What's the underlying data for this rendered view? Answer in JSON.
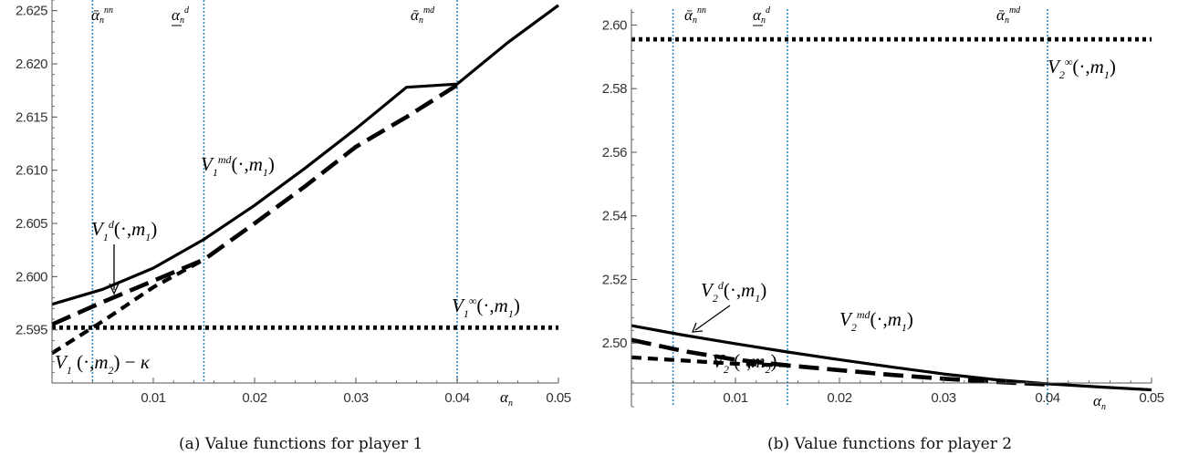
{
  "captions": {
    "a": "(a)  Value functions for player 1",
    "b": "(b)  Value functions for player 2"
  },
  "colors": {
    "curve": "#000000",
    "marker_line": "#2e8bc0",
    "axis": "#555555"
  },
  "chart_data": [
    {
      "type": "line",
      "xlabel": "α_n",
      "xlim": [
        0,
        0.05
      ],
      "ylim": [
        2.59,
        2.626
      ],
      "xticks": [
        0.01,
        0.02,
        0.03,
        0.04,
        0.05
      ],
      "xtick_labels": [
        "0.01",
        "0.02",
        "0.03",
        "0.04",
        "0.05"
      ],
      "yticks": [
        2.595,
        2.6,
        2.605,
        2.61,
        2.615,
        2.62,
        2.625
      ],
      "ytick_labels": [
        "2.595",
        "2.600",
        "2.605",
        "2.610",
        "2.615",
        "2.620",
        "2.625"
      ],
      "vlines": [
        {
          "x": 0.004,
          "label": "ᾱ_n^nn"
        },
        {
          "x": 0.015,
          "label": "α_n^d"
        },
        {
          "x": 0.04,
          "label": "ᾱ_n^md"
        }
      ],
      "series": [
        {
          "name": "V_1^md(·,m_1)",
          "style": "solid",
          "x": [
            0,
            0.005,
            0.01,
            0.015,
            0.02,
            0.025,
            0.03,
            0.035,
            0.04,
            0.045,
            0.05
          ],
          "y": [
            2.5974,
            2.5988,
            2.6008,
            2.6035,
            2.6067,
            2.6102,
            2.6139,
            2.6178,
            2.6181,
            2.622,
            2.6255
          ]
        },
        {
          "name": "V_1^d(·,m_1)",
          "style": "longdash",
          "x": [
            0,
            0.005,
            0.01,
            0.015,
            0.02,
            0.025,
            0.03,
            0.035,
            0.04
          ],
          "y": [
            2.5955,
            2.5976,
            2.5996,
            2.6016,
            2.605,
            2.6085,
            2.6122,
            2.615,
            2.618
          ]
        },
        {
          "name": "V_1(·,m_2)−κ",
          "style": "shortdash",
          "x": [
            0,
            0.005,
            0.01,
            0.015
          ],
          "y": [
            2.5928,
            2.5958,
            2.599,
            2.6016
          ]
        },
        {
          "name": "V_1^∞(·,m_1)",
          "style": "dotted",
          "x": [
            0,
            0.05
          ],
          "y": [
            2.5952,
            2.5952
          ]
        }
      ]
    },
    {
      "type": "line",
      "xlabel": "α_n",
      "xlim": [
        0,
        0.05
      ],
      "ylim": [
        2.48,
        2.605
      ],
      "xticks": [
        0.01,
        0.02,
        0.03,
        0.04,
        0.05
      ],
      "xtick_labels": [
        "0.01",
        "0.02",
        "0.03",
        "0.04",
        "0.05"
      ],
      "yticks": [
        2.5,
        2.52,
        2.54,
        2.56,
        2.58,
        2.6
      ],
      "ytick_labels": [
        "2.50",
        "2.52",
        "2.54",
        "2.56",
        "2.58",
        "2.60"
      ],
      "vlines": [
        {
          "x": 0.004,
          "label": "ᾱ_n^nn"
        },
        {
          "x": 0.015,
          "label": "α_n^d"
        },
        {
          "x": 0.04,
          "label": "ᾱ_n^md"
        }
      ],
      "series": [
        {
          "name": "V_2^md(·,m_1)",
          "style": "solid",
          "x": [
            0,
            0.005,
            0.01,
            0.015,
            0.02,
            0.025,
            0.03,
            0.035,
            0.04,
            0.045,
            0.05
          ],
          "y": [
            2.5055,
            2.5025,
            2.4998,
            2.4972,
            2.4948,
            2.4925,
            2.4903,
            2.4885,
            2.4872,
            2.4862,
            2.4853
          ]
        },
        {
          "name": "V_2^d(·,m_1)",
          "style": "longdash",
          "x": [
            0,
            0.005,
            0.01,
            0.015,
            0.02,
            0.025,
            0.03,
            0.035,
            0.04
          ],
          "y": [
            2.501,
            2.4975,
            2.4948,
            2.493,
            2.4915,
            2.49,
            2.4888,
            2.4878,
            2.487
          ]
        },
        {
          "name": "V_2(·,m_2)",
          "style": "shortdash",
          "x": [
            0,
            0.005,
            0.01,
            0.015
          ],
          "y": [
            2.4955,
            2.4945,
            2.4935,
            2.493
          ]
        },
        {
          "name": "V_2^∞(·,m_1)",
          "style": "dotted",
          "x": [
            0,
            0.05
          ],
          "y": [
            2.5955,
            2.5955
          ]
        }
      ]
    }
  ]
}
